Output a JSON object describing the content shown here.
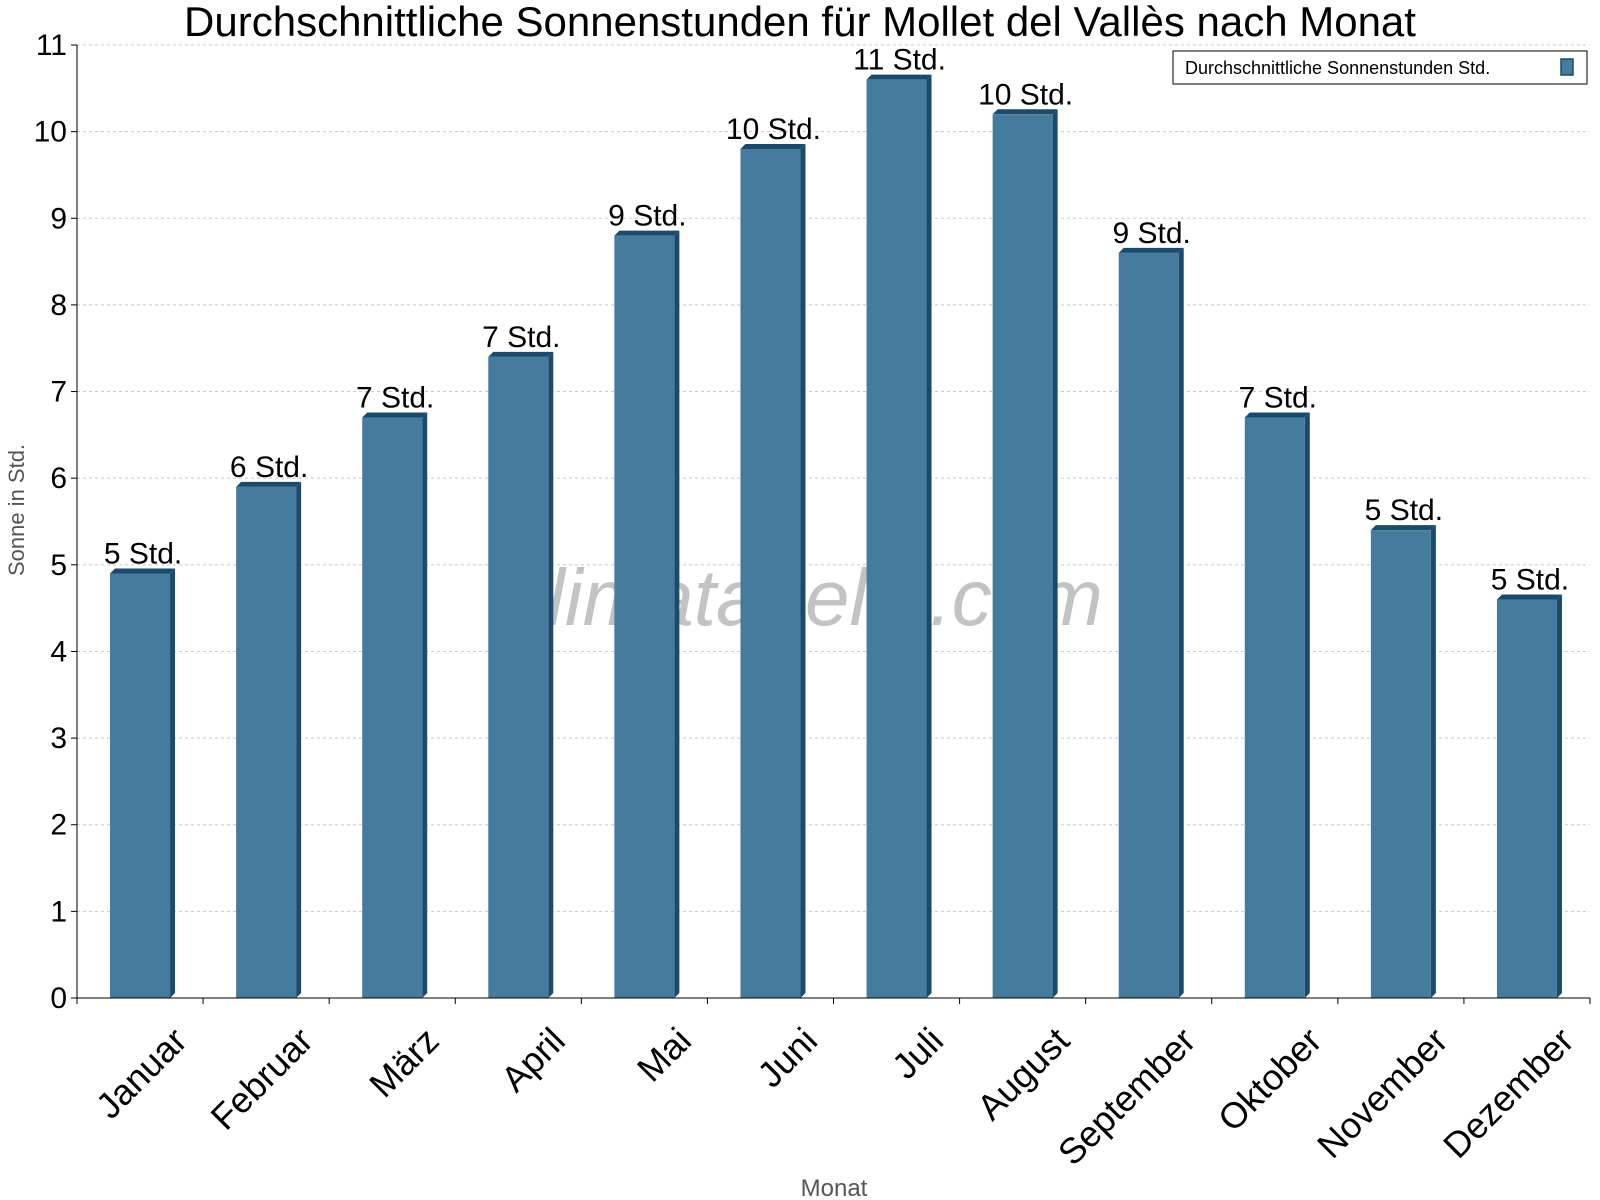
{
  "chart_data": {
    "type": "bar",
    "title": "Durchschnittliche Sonnenstunden für Mollet del Vallès nach Monat",
    "xlabel": "Monat",
    "ylabel": "Sonne in Std.",
    "ylim": [
      0,
      11
    ],
    "yticks": [
      0,
      1,
      2,
      3,
      4,
      5,
      6,
      7,
      8,
      9,
      10,
      11
    ],
    "categories": [
      "Januar",
      "Februar",
      "März",
      "April",
      "Mai",
      "Juni",
      "Juli",
      "August",
      "September",
      "Oktober",
      "November",
      "Dezember"
    ],
    "series": [
      {
        "name": "Durchschnittliche Sonnenstunden Std.",
        "color": "#457b9d",
        "values": [
          4.9,
          5.9,
          6.7,
          7.4,
          8.8,
          9.8,
          10.6,
          10.2,
          8.6,
          6.7,
          5.4,
          4.6
        ],
        "labels": [
          "5 Std.",
          "6 Std.",
          "7 Std.",
          "7 Std.",
          "9 Std.",
          "10 Std.",
          "11 Std.",
          "10 Std.",
          "9 Std.",
          "7 Std.",
          "5 Std.",
          "5 Std."
        ]
      }
    ],
    "grid": true,
    "legend_position": "top-right",
    "watermark": "klimatabelle.com"
  }
}
